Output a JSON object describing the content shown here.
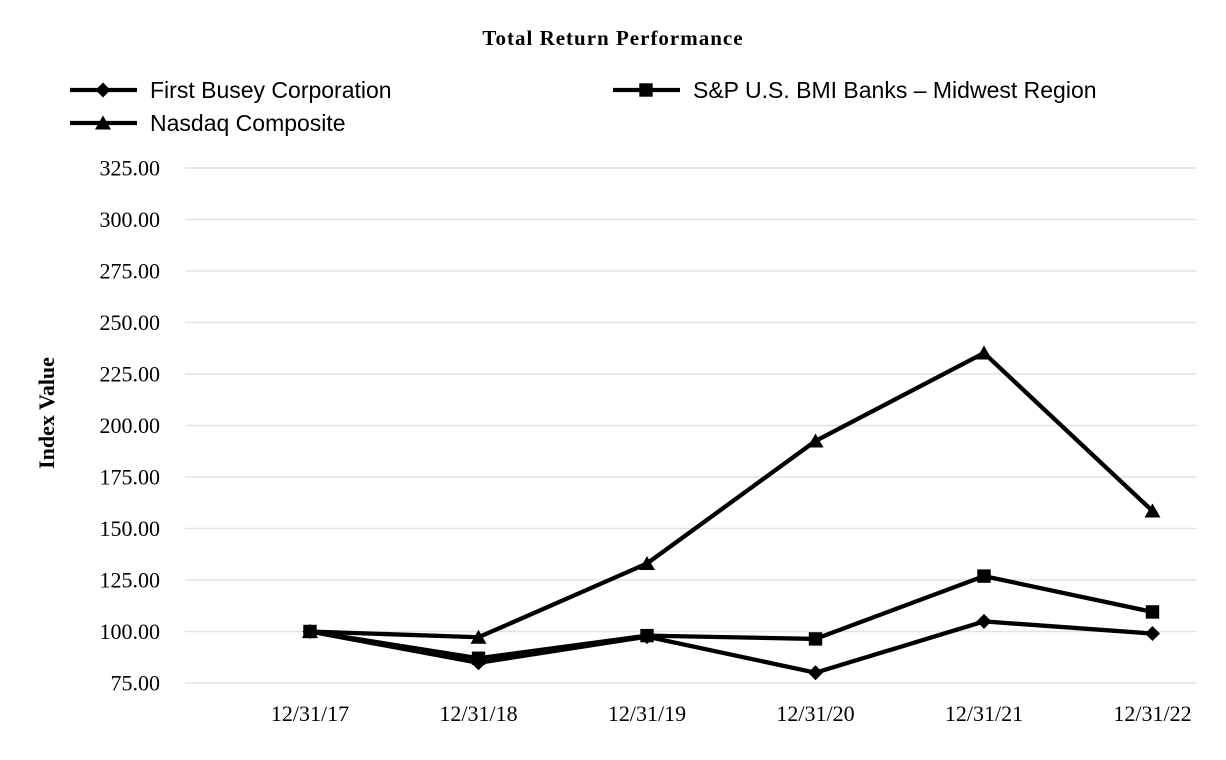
{
  "page": {
    "background": "#ffffff"
  },
  "chart_data": {
    "type": "line",
    "title": "Total Return Performance",
    "ylabel": "Index Value",
    "xlabel": "",
    "categories": [
      "12/31/17",
      "12/31/18",
      "12/31/19",
      "12/31/20",
      "12/31/21",
      "12/31/22"
    ],
    "series": [
      {
        "name": "First Busey Corporation",
        "marker": "diamond",
        "color": "#000000",
        "values": [
          100.0,
          84.8,
          97.5,
          80.0,
          104.9,
          99.0
        ]
      },
      {
        "name": "S&P U.S. BMI Banks – Midwest Region",
        "marker": "square",
        "color": "#000000",
        "values": [
          100.0,
          87.0,
          98.0,
          96.4,
          126.9,
          109.5
        ]
      },
      {
        "name": "Nasdaq Composite",
        "marker": "triangle",
        "color": "#000000",
        "values": [
          100.0,
          97.2,
          133.0,
          192.5,
          235.2,
          158.5
        ]
      }
    ],
    "y_axis": {
      "min": 75,
      "max": 325,
      "step": 25,
      "tick_format_decimals": 2
    },
    "grid": true,
    "legend_position": "top",
    "gridline_color": "#E2E2E2",
    "axis_text_color": "#000000"
  }
}
